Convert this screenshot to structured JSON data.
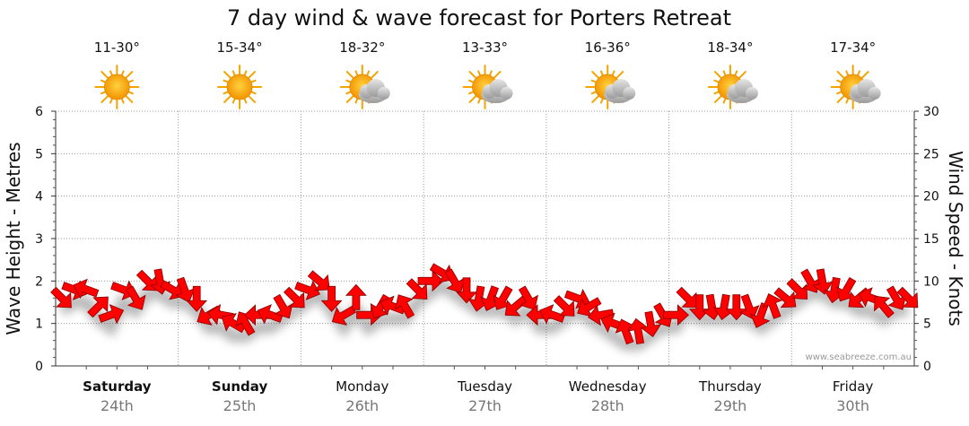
{
  "chart_data": {
    "type": "line",
    "title": "7 day wind & wave forecast for Porters Retreat",
    "ylabel_left": "Wave Height - Metres",
    "ylabel_right": "Wind Speed - Knots",
    "yleft_ticks": [
      "0",
      "1",
      "2",
      "3",
      "4",
      "5",
      "6"
    ],
    "yright_ticks": [
      "0",
      "5",
      "10",
      "15",
      "20",
      "25",
      "30"
    ],
    "yleft_lim": [
      0,
      6
    ],
    "yright_lim": [
      0,
      30
    ],
    "credit": "www.seabreeze.com.au",
    "days": [
      {
        "day": "Saturday",
        "date": "24th",
        "temp": "11-30°",
        "weather": "sunny",
        "bold": true
      },
      {
        "day": "Sunday",
        "date": "25th",
        "temp": "15-34°",
        "weather": "sunny",
        "bold": true
      },
      {
        "day": "Monday",
        "date": "26th",
        "temp": "18-32°",
        "weather": "partly-cloudy",
        "bold": false
      },
      {
        "day": "Tuesday",
        "date": "27th",
        "temp": "13-33°",
        "weather": "partly-cloudy",
        "bold": false
      },
      {
        "day": "Wednesday",
        "date": "28th",
        "temp": "16-36°",
        "weather": "partly-cloudy",
        "bold": false
      },
      {
        "day": "Thursday",
        "date": "29th",
        "temp": "18-34°",
        "weather": "partly-cloudy",
        "bold": false
      },
      {
        "day": "Friday",
        "date": "30th",
        "temp": "17-34°",
        "weather": "partly-cloudy",
        "bold": false
      }
    ],
    "series": [
      {
        "axis": "right",
        "color": "#ff0000",
        "marker": "wind-direction-arrow",
        "values": [
          8,
          9,
          9,
          7,
          6,
          9,
          8,
          10,
          10,
          9,
          9,
          8,
          6,
          6,
          5,
          5,
          6,
          6,
          7,
          8,
          9,
          10,
          8,
          6,
          8,
          6,
          7,
          7,
          7,
          9,
          10,
          11,
          10,
          9,
          8,
          8,
          8,
          7,
          8,
          6,
          6,
          7,
          8,
          7,
          6,
          5,
          4,
          4,
          5,
          6,
          6,
          8,
          7,
          7,
          7,
          7,
          7,
          6,
          7,
          8,
          9,
          10,
          10,
          9,
          9,
          8,
          8,
          7,
          8,
          8
        ],
        "directions": [
          45,
          20,
          200,
          315,
          340,
          20,
          60,
          45,
          80,
          30,
          70,
          90,
          150,
          190,
          210,
          240,
          180,
          200,
          60,
          45,
          20,
          40,
          90,
          150,
          270,
          0,
          120,
          200,
          240,
          45,
          0,
          30,
          60,
          90,
          100,
          110,
          120,
          140,
          60,
          180,
          200,
          45,
          20,
          150,
          170,
          200,
          250,
          260,
          80,
          60,
          0,
          45,
          90,
          80,
          100,
          90,
          70,
          110,
          250,
          40,
          45,
          60,
          80,
          100,
          120,
          140,
          200,
          230,
          60,
          45
        ]
      }
    ]
  }
}
